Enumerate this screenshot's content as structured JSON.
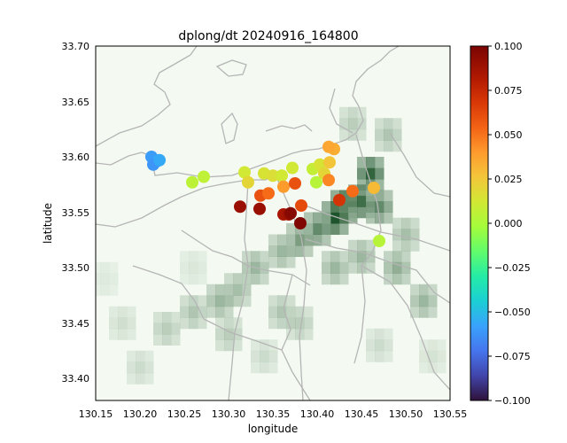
{
  "chart_data": {
    "type": "scatter",
    "title": "dplong/dt 20240916_164800",
    "xlabel": "longitude",
    "ylabel": "latitude",
    "xlim": [
      130.15,
      130.55
    ],
    "ylim": [
      33.38,
      33.7
    ],
    "xticks": [
      "130.15",
      "130.20",
      "130.25",
      "130.30",
      "130.35",
      "130.40",
      "130.45",
      "130.50",
      "130.55"
    ],
    "yticks": [
      "33.40",
      "33.45",
      "33.50",
      "33.55",
      "33.60",
      "33.65",
      "33.70"
    ],
    "colorbar": {
      "cmap": "turbo",
      "range": [
        -0.1,
        0.1
      ],
      "ticks": [
        "−0.100",
        "−0.075",
        "−0.050",
        "−0.025",
        "0.000",
        "0.025",
        "0.050",
        "0.075",
        "0.100"
      ]
    },
    "background_field": {
      "description": "green precipitation intensity grid",
      "cells": [
        {
          "lon": 130.46,
          "lat": 33.585,
          "v": 0.9
        },
        {
          "lon": 130.43,
          "lat": 33.555,
          "v": 1.0
        },
        {
          "lon": 130.42,
          "lat": 33.545,
          "v": 0.95
        },
        {
          "lon": 130.45,
          "lat": 33.56,
          "v": 0.85
        },
        {
          "lon": 130.47,
          "lat": 33.555,
          "v": 0.7
        },
        {
          "lon": 130.4,
          "lat": 33.535,
          "v": 0.7
        },
        {
          "lon": 130.38,
          "lat": 33.525,
          "v": 0.6
        },
        {
          "lon": 130.36,
          "lat": 33.515,
          "v": 0.45
        },
        {
          "lon": 130.33,
          "lat": 33.5,
          "v": 0.45
        },
        {
          "lon": 130.31,
          "lat": 33.48,
          "v": 0.4
        },
        {
          "lon": 130.29,
          "lat": 33.47,
          "v": 0.45
        },
        {
          "lon": 130.26,
          "lat": 33.46,
          "v": 0.35
        },
        {
          "lon": 130.23,
          "lat": 33.445,
          "v": 0.3
        },
        {
          "lon": 130.36,
          "lat": 33.46,
          "v": 0.35
        },
        {
          "lon": 130.38,
          "lat": 33.45,
          "v": 0.3
        },
        {
          "lon": 130.42,
          "lat": 33.5,
          "v": 0.45
        },
        {
          "lon": 130.45,
          "lat": 33.51,
          "v": 0.45
        },
        {
          "lon": 130.49,
          "lat": 33.5,
          "v": 0.5
        },
        {
          "lon": 130.52,
          "lat": 33.47,
          "v": 0.45
        },
        {
          "lon": 130.5,
          "lat": 33.53,
          "v": 0.4
        },
        {
          "lon": 130.48,
          "lat": 33.62,
          "v": 0.35
        },
        {
          "lon": 130.44,
          "lat": 33.63,
          "v": 0.3
        },
        {
          "lon": 130.3,
          "lat": 33.44,
          "v": 0.3
        },
        {
          "lon": 130.18,
          "lat": 33.45,
          "v": 0.18
        },
        {
          "lon": 130.2,
          "lat": 33.41,
          "v": 0.2
        },
        {
          "lon": 130.34,
          "lat": 33.42,
          "v": 0.2
        },
        {
          "lon": 130.47,
          "lat": 33.43,
          "v": 0.2
        },
        {
          "lon": 130.53,
          "lat": 33.42,
          "v": 0.15
        },
        {
          "lon": 130.26,
          "lat": 33.5,
          "v": 0.12
        },
        {
          "lon": 130.16,
          "lat": 33.49,
          "v": 0.1
        }
      ]
    },
    "points": [
      {
        "lon": 130.213,
        "lat": 33.6,
        "v": -0.06
      },
      {
        "lon": 130.219,
        "lat": 33.596,
        "v": -0.058
      },
      {
        "lon": 130.215,
        "lat": 33.593,
        "v": -0.062
      },
      {
        "lon": 130.222,
        "lat": 33.597,
        "v": -0.056
      },
      {
        "lon": 130.259,
        "lat": 33.577,
        "v": 0.005
      },
      {
        "lon": 130.272,
        "lat": 33.582,
        "v": 0.006
      },
      {
        "lon": 130.313,
        "lat": 33.555,
        "v": 0.09
      },
      {
        "lon": 130.318,
        "lat": 33.586,
        "v": 0.012
      },
      {
        "lon": 130.322,
        "lat": 33.577,
        "v": 0.02
      },
      {
        "lon": 130.34,
        "lat": 33.585,
        "v": 0.014
      },
      {
        "lon": 130.35,
        "lat": 33.583,
        "v": 0.016
      },
      {
        "lon": 130.36,
        "lat": 33.583,
        "v": 0.012
      },
      {
        "lon": 130.372,
        "lat": 33.59,
        "v": 0.012
      },
      {
        "lon": 130.336,
        "lat": 33.565,
        "v": 0.06
      },
      {
        "lon": 130.345,
        "lat": 33.567,
        "v": 0.052
      },
      {
        "lon": 130.335,
        "lat": 33.553,
        "v": 0.09
      },
      {
        "lon": 130.362,
        "lat": 33.573,
        "v": 0.04
      },
      {
        "lon": 130.375,
        "lat": 33.576,
        "v": 0.06
      },
      {
        "lon": 130.362,
        "lat": 33.548,
        "v": 0.085
      },
      {
        "lon": 130.368,
        "lat": 33.548,
        "v": 0.088
      },
      {
        "lon": 130.37,
        "lat": 33.549,
        "v": 0.096
      },
      {
        "lon": 130.382,
        "lat": 33.556,
        "v": 0.062
      },
      {
        "lon": 130.381,
        "lat": 33.54,
        "v": 0.098
      },
      {
        "lon": 130.395,
        "lat": 33.589,
        "v": 0.008
      },
      {
        "lon": 130.403,
        "lat": 33.593,
        "v": 0.014
      },
      {
        "lon": 130.408,
        "lat": 33.585,
        "v": 0.02
      },
      {
        "lon": 130.414,
        "lat": 33.595,
        "v": 0.026
      },
      {
        "lon": 130.419,
        "lat": 33.607,
        "v": 0.034
      },
      {
        "lon": 130.413,
        "lat": 33.609,
        "v": 0.036
      },
      {
        "lon": 130.399,
        "lat": 33.577,
        "v": 0.004
      },
      {
        "lon": 130.413,
        "lat": 33.579,
        "v": 0.045
      },
      {
        "lon": 130.425,
        "lat": 33.561,
        "v": 0.07
      },
      {
        "lon": 130.44,
        "lat": 33.569,
        "v": 0.052
      },
      {
        "lon": 130.464,
        "lat": 33.572,
        "v": 0.03
      },
      {
        "lon": 130.47,
        "lat": 33.524,
        "v": 0.004
      }
    ]
  }
}
